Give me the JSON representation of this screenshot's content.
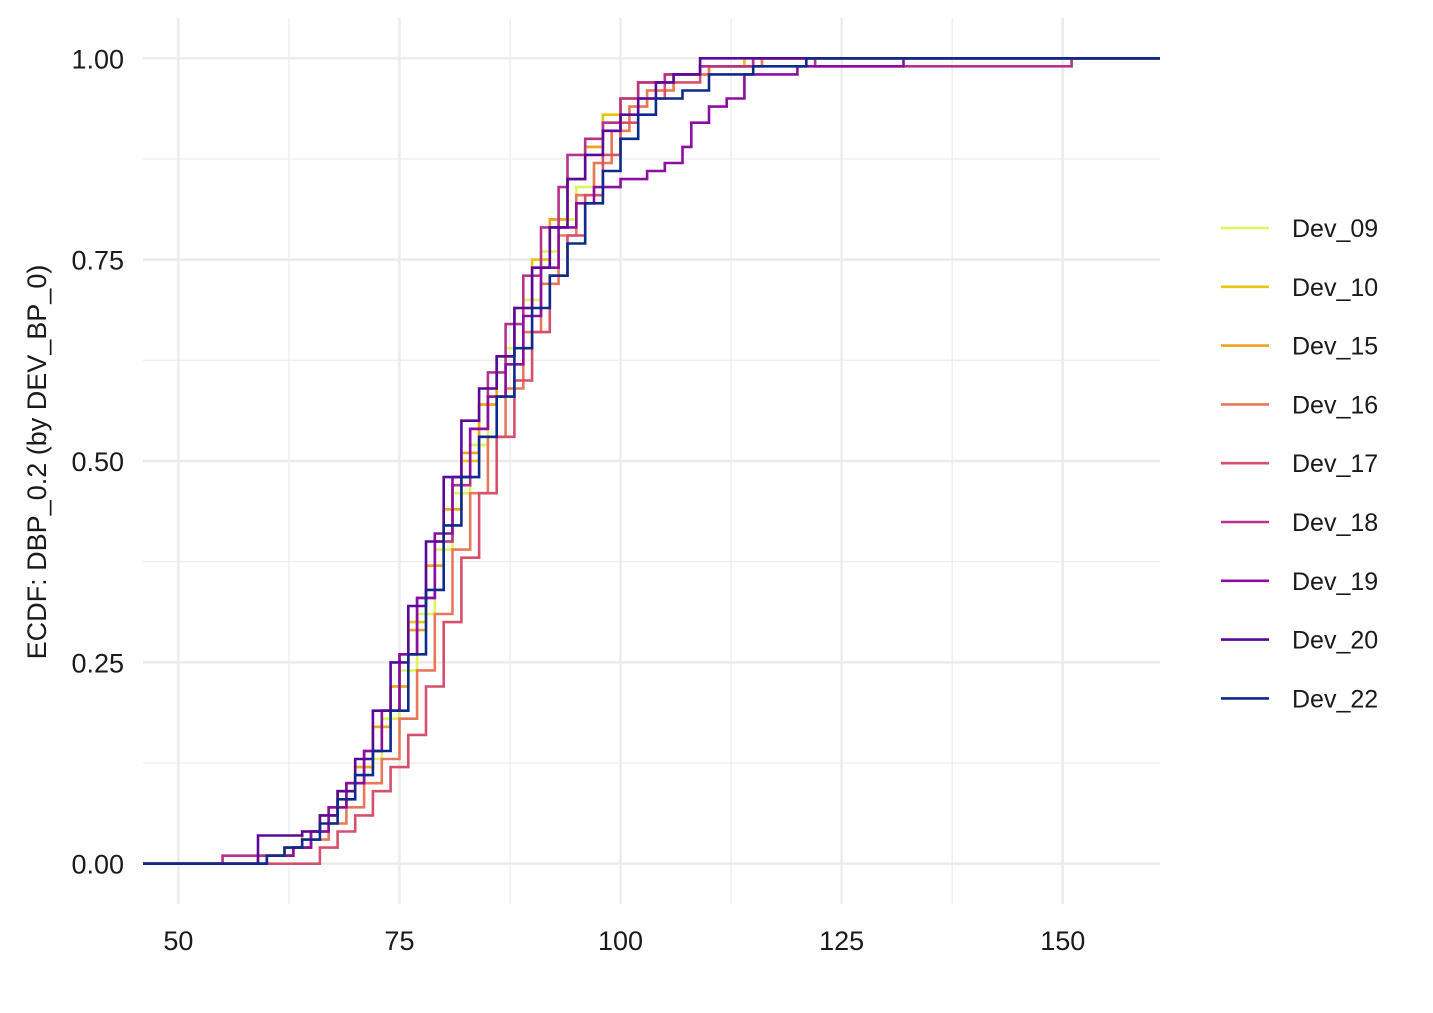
{
  "chart_data": {
    "type": "line",
    "subtype": "ecdf-step",
    "title": "",
    "xlabel": "",
    "ylabel": "ECDF: DBP_0.2 (by DEV_BP_0)",
    "xlim": [
      46,
      161
    ],
    "ylim": [
      -0.05,
      1.05
    ],
    "x_ticks": [
      50,
      75,
      100,
      125,
      150
    ],
    "y_ticks": [
      0.0,
      0.25,
      0.5,
      0.75,
      1.0
    ],
    "x_tick_labels": [
      "50",
      "75",
      "100",
      "125",
      "150"
    ],
    "y_tick_labels": [
      "0.00",
      "0.25",
      "0.50",
      "0.75",
      "1.00"
    ],
    "grid": true,
    "legend_position": "right",
    "series": [
      {
        "name": "Dev_09",
        "color": "#dcf55a",
        "points": [
          [
            46,
            0
          ],
          [
            57,
            0
          ],
          [
            60,
            0.01
          ],
          [
            63,
            0.02
          ],
          [
            65,
            0.04
          ],
          [
            67,
            0.07
          ],
          [
            69,
            0.1
          ],
          [
            71,
            0.13
          ],
          [
            73,
            0.18
          ],
          [
            75,
            0.24
          ],
          [
            77,
            0.31
          ],
          [
            79,
            0.39
          ],
          [
            81,
            0.46
          ],
          [
            83,
            0.52
          ],
          [
            85,
            0.58
          ],
          [
            87,
            0.64
          ],
          [
            89,
            0.7
          ],
          [
            91,
            0.76
          ],
          [
            93,
            0.8
          ],
          [
            95,
            0.84
          ],
          [
            97,
            0.87
          ],
          [
            99,
            0.91
          ],
          [
            101,
            0.94
          ],
          [
            103,
            0.96
          ],
          [
            106,
            0.98
          ],
          [
            110,
            0.99
          ],
          [
            115,
            1.0
          ],
          [
            161,
            1.0
          ]
        ]
      },
      {
        "name": "Dev_10",
        "color": "#e8c310",
        "points": [
          [
            46,
            0
          ],
          [
            56,
            0
          ],
          [
            59,
            0.01
          ],
          [
            62,
            0.02
          ],
          [
            64,
            0.04
          ],
          [
            66,
            0.06
          ],
          [
            68,
            0.09
          ],
          [
            70,
            0.12
          ],
          [
            72,
            0.17
          ],
          [
            74,
            0.22
          ],
          [
            76,
            0.3
          ],
          [
            78,
            0.37
          ],
          [
            80,
            0.44
          ],
          [
            82,
            0.5
          ],
          [
            84,
            0.57
          ],
          [
            86,
            0.63
          ],
          [
            88,
            0.69
          ],
          [
            90,
            0.75
          ],
          [
            92,
            0.8
          ],
          [
            94,
            0.85
          ],
          [
            96,
            0.89
          ],
          [
            98,
            0.93
          ],
          [
            100,
            0.95
          ],
          [
            102,
            0.97
          ],
          [
            105,
            0.98
          ],
          [
            110,
            0.99
          ],
          [
            114,
            1.0
          ],
          [
            161,
            1.0
          ]
        ]
      },
      {
        "name": "Dev_15",
        "color": "#f0a31e",
        "points": [
          [
            46,
            0
          ],
          [
            56,
            0
          ],
          [
            59,
            0.01
          ],
          [
            62,
            0.02
          ],
          [
            64,
            0.04
          ],
          [
            66,
            0.06
          ],
          [
            68,
            0.09
          ],
          [
            70,
            0.12
          ],
          [
            72,
            0.17
          ],
          [
            74,
            0.22
          ],
          [
            76,
            0.29
          ],
          [
            78,
            0.37
          ],
          [
            80,
            0.44
          ],
          [
            82,
            0.51
          ],
          [
            84,
            0.57
          ],
          [
            86,
            0.63
          ],
          [
            88,
            0.69
          ],
          [
            90,
            0.74
          ],
          [
            92,
            0.8
          ],
          [
            94,
            0.85
          ],
          [
            96,
            0.89
          ],
          [
            98,
            0.92
          ],
          [
            100,
            0.95
          ],
          [
            102,
            0.97
          ],
          [
            105,
            0.98
          ],
          [
            110,
            0.99
          ],
          [
            116,
            1.0
          ],
          [
            161,
            1.0
          ]
        ]
      },
      {
        "name": "Dev_16",
        "color": "#e8785a",
        "points": [
          [
            46,
            0
          ],
          [
            56,
            0
          ],
          [
            60,
            0.01
          ],
          [
            63,
            0.02
          ],
          [
            65,
            0.03
          ],
          [
            67,
            0.05
          ],
          [
            69,
            0.07
          ],
          [
            71,
            0.1
          ],
          [
            73,
            0.13
          ],
          [
            75,
            0.18
          ],
          [
            77,
            0.24
          ],
          [
            79,
            0.31
          ],
          [
            81,
            0.39
          ],
          [
            83,
            0.46
          ],
          [
            85,
            0.53
          ],
          [
            87,
            0.59
          ],
          [
            89,
            0.66
          ],
          [
            91,
            0.72
          ],
          [
            93,
            0.78
          ],
          [
            95,
            0.83
          ],
          [
            97,
            0.87
          ],
          [
            99,
            0.91
          ],
          [
            101,
            0.94
          ],
          [
            103,
            0.96
          ],
          [
            106,
            0.98
          ],
          [
            110,
            0.99
          ],
          [
            116,
            1.0
          ],
          [
            161,
            1.0
          ]
        ]
      },
      {
        "name": "Dev_17",
        "color": "#d6506e",
        "points": [
          [
            46,
            0
          ],
          [
            56,
            0
          ],
          [
            66,
            0
          ],
          [
            66,
            0.02
          ],
          [
            68,
            0.04
          ],
          [
            70,
            0.06
          ],
          [
            72,
            0.09
          ],
          [
            74,
            0.12
          ],
          [
            76,
            0.16
          ],
          [
            78,
            0.22
          ],
          [
            80,
            0.3
          ],
          [
            82,
            0.38
          ],
          [
            84,
            0.46
          ],
          [
            86,
            0.53
          ],
          [
            88,
            0.6
          ],
          [
            90,
            0.66
          ],
          [
            92,
            0.73
          ],
          [
            94,
            0.78
          ],
          [
            96,
            0.83
          ],
          [
            98,
            0.88
          ],
          [
            100,
            0.92
          ],
          [
            102,
            0.95
          ],
          [
            105,
            0.97
          ],
          [
            109,
            0.99
          ],
          [
            115,
            1.0
          ],
          [
            161,
            1.0
          ]
        ]
      },
      {
        "name": "Dev_18",
        "color": "#b5338c",
        "points": [
          [
            46,
            0
          ],
          [
            55,
            0
          ],
          [
            55,
            0.01
          ],
          [
            60,
            0.01
          ],
          [
            63,
            0.02
          ],
          [
            65,
            0.04
          ],
          [
            67,
            0.07
          ],
          [
            69,
            0.1
          ],
          [
            71,
            0.14
          ],
          [
            73,
            0.19
          ],
          [
            75,
            0.26
          ],
          [
            77,
            0.33
          ],
          [
            79,
            0.4
          ],
          [
            81,
            0.47
          ],
          [
            83,
            0.54
          ],
          [
            85,
            0.61
          ],
          [
            87,
            0.67
          ],
          [
            89,
            0.73
          ],
          [
            91,
            0.79
          ],
          [
            93,
            0.84
          ],
          [
            94,
            0.88
          ],
          [
            96,
            0.9
          ],
          [
            98,
            0.92
          ],
          [
            100,
            0.95
          ],
          [
            102,
            0.97
          ],
          [
            105,
            0.98
          ],
          [
            109,
            0.99
          ],
          [
            115,
            1.0
          ],
          [
            122,
            1.0
          ],
          [
            122,
            0.99
          ],
          [
            151,
            0.99
          ],
          [
            151,
            1.0
          ],
          [
            161,
            1.0
          ]
        ]
      },
      {
        "name": "Dev_19",
        "color": "#8a0fa0",
        "points": [
          [
            46,
            0
          ],
          [
            57,
            0
          ],
          [
            60,
            0.01
          ],
          [
            63,
            0.02
          ],
          [
            65,
            0.04
          ],
          [
            67,
            0.07
          ],
          [
            69,
            0.1
          ],
          [
            71,
            0.14
          ],
          [
            73,
            0.19
          ],
          [
            75,
            0.26
          ],
          [
            77,
            0.33
          ],
          [
            79,
            0.41
          ],
          [
            81,
            0.48
          ],
          [
            83,
            0.54
          ],
          [
            85,
            0.58
          ],
          [
            87,
            0.62
          ],
          [
            89,
            0.68
          ],
          [
            91,
            0.74
          ],
          [
            93,
            0.79
          ],
          [
            95,
            0.82
          ],
          [
            97,
            0.84
          ],
          [
            100,
            0.85
          ],
          [
            103,
            0.86
          ],
          [
            105,
            0.87
          ],
          [
            107,
            0.89
          ],
          [
            108,
            0.92
          ],
          [
            110,
            0.94
          ],
          [
            112,
            0.95
          ],
          [
            114,
            0.98
          ],
          [
            120,
            0.99
          ],
          [
            132,
            0.99
          ],
          [
            132,
            1.0
          ],
          [
            161,
            1.0
          ]
        ]
      },
      {
        "name": "Dev_20",
        "color": "#5a079c",
        "points": [
          [
            46,
            0
          ],
          [
            59,
            0
          ],
          [
            59,
            0.035
          ],
          [
            63,
            0.035
          ],
          [
            64,
            0.04
          ],
          [
            66,
            0.06
          ],
          [
            68,
            0.09
          ],
          [
            70,
            0.13
          ],
          [
            72,
            0.19
          ],
          [
            74,
            0.25
          ],
          [
            76,
            0.32
          ],
          [
            78,
            0.4
          ],
          [
            80,
            0.48
          ],
          [
            82,
            0.55
          ],
          [
            84,
            0.59
          ],
          [
            86,
            0.63
          ],
          [
            88,
            0.69
          ],
          [
            90,
            0.74
          ],
          [
            92,
            0.79
          ],
          [
            94,
            0.85
          ],
          [
            96,
            0.88
          ],
          [
            98,
            0.91
          ],
          [
            100,
            0.93
          ],
          [
            102,
            0.95
          ],
          [
            104,
            0.97
          ],
          [
            106,
            0.98
          ],
          [
            109,
            1.0
          ],
          [
            161,
            1.0
          ]
        ]
      },
      {
        "name": "Dev_22",
        "color": "#0d2a8c",
        "points": [
          [
            46,
            0
          ],
          [
            56,
            0
          ],
          [
            60,
            0.01
          ],
          [
            62,
            0.02
          ],
          [
            64,
            0.03
          ],
          [
            66,
            0.05
          ],
          [
            68,
            0.08
          ],
          [
            70,
            0.11
          ],
          [
            72,
            0.14
          ],
          [
            74,
            0.19
          ],
          [
            76,
            0.26
          ],
          [
            78,
            0.34
          ],
          [
            80,
            0.42
          ],
          [
            82,
            0.48
          ],
          [
            84,
            0.53
          ],
          [
            86,
            0.58
          ],
          [
            88,
            0.64
          ],
          [
            90,
            0.69
          ],
          [
            92,
            0.73
          ],
          [
            94,
            0.77
          ],
          [
            96,
            0.82
          ],
          [
            98,
            0.86
          ],
          [
            100,
            0.9
          ],
          [
            102,
            0.93
          ],
          [
            104,
            0.95
          ],
          [
            107,
            0.96
          ],
          [
            110,
            0.98
          ],
          [
            115,
            0.99
          ],
          [
            121,
            1.0
          ],
          [
            161,
            1.0
          ]
        ]
      }
    ]
  }
}
